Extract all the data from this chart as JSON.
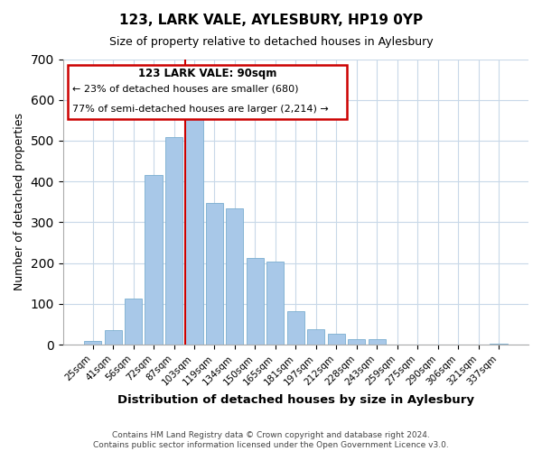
{
  "title": "123, LARK VALE, AYLESBURY, HP19 0YP",
  "subtitle": "Size of property relative to detached houses in Aylesbury",
  "xlabel": "Distribution of detached houses by size in Aylesbury",
  "ylabel": "Number of detached properties",
  "footer_lines": [
    "Contains HM Land Registry data © Crown copyright and database right 2024.",
    "Contains public sector information licensed under the Open Government Licence v3.0."
  ],
  "categories": [
    "25sqm",
    "41sqm",
    "56sqm",
    "72sqm",
    "87sqm",
    "103sqm",
    "119sqm",
    "134sqm",
    "150sqm",
    "165sqm",
    "181sqm",
    "197sqm",
    "212sqm",
    "228sqm",
    "243sqm",
    "259sqm",
    "275sqm",
    "290sqm",
    "306sqm",
    "321sqm",
    "337sqm"
  ],
  "values": [
    8,
    35,
    113,
    416,
    508,
    575,
    347,
    335,
    212,
    204,
    82,
    37,
    26,
    13,
    14,
    0,
    0,
    0,
    0,
    0,
    2
  ],
  "bar_color": "#a8c8e8",
  "bar_edge_color": "#7aaed0",
  "vertical_line_color": "#cc0000",
  "annotation": {
    "title": "123 LARK VALE: 90sqm",
    "line2": "← 23% of detached houses are smaller (680)",
    "line3": "77% of semi-detached houses are larger (2,214) →",
    "box_color": "#ffffff",
    "border_color": "#cc0000"
  },
  "ylim": [
    0,
    700
  ],
  "yticks": [
    0,
    100,
    200,
    300,
    400,
    500,
    600,
    700
  ],
  "bg_color": "#ffffff",
  "grid_color": "#c8d8e8"
}
